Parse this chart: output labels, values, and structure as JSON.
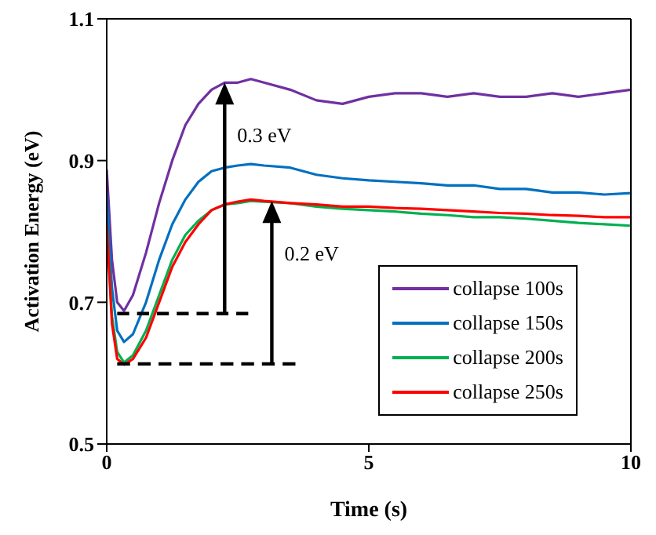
{
  "chart_data": {
    "type": "line",
    "xlabel": "Time (s)",
    "ylabel": "Activation Energy (eV)",
    "x": [
      0,
      0.1,
      0.2,
      0.33,
      0.5,
      0.75,
      1,
      1.25,
      1.5,
      1.75,
      2,
      2.25,
      2.5,
      2.75,
      3,
      3.5,
      4,
      4.5,
      5,
      5.5,
      6,
      6.5,
      7,
      7.5,
      8,
      8.5,
      9,
      9.5,
      10
    ],
    "series": [
      {
        "name": "collapse 100s",
        "color": "#7030a0",
        "values": [
          0.887,
          0.76,
          0.7,
          0.688,
          0.71,
          0.77,
          0.84,
          0.9,
          0.95,
          0.98,
          1.0,
          1.01,
          1.01,
          1.015,
          1.01,
          1.0,
          0.985,
          0.98,
          0.99,
          0.995,
          0.995,
          0.99,
          0.995,
          0.99,
          0.99,
          0.995,
          0.99,
          0.995,
          1.0
        ]
      },
      {
        "name": "collapse 150s",
        "color": "#0070c0",
        "values": [
          0.854,
          0.72,
          0.66,
          0.644,
          0.655,
          0.7,
          0.76,
          0.81,
          0.845,
          0.87,
          0.885,
          0.89,
          0.893,
          0.895,
          0.893,
          0.89,
          0.88,
          0.875,
          0.872,
          0.87,
          0.868,
          0.865,
          0.865,
          0.86,
          0.86,
          0.855,
          0.855,
          0.852,
          0.854
        ]
      },
      {
        "name": "collapse 200s",
        "color": "#00b050",
        "values": [
          0.81,
          0.68,
          0.63,
          0.615,
          0.625,
          0.66,
          0.71,
          0.76,
          0.795,
          0.815,
          0.83,
          0.838,
          0.84,
          0.843,
          0.842,
          0.84,
          0.835,
          0.832,
          0.83,
          0.828,
          0.825,
          0.823,
          0.82,
          0.82,
          0.818,
          0.815,
          0.812,
          0.81,
          0.808
        ]
      },
      {
        "name": "collapse 250s",
        "color": "#ff0000",
        "values": [
          0.81,
          0.67,
          0.62,
          0.612,
          0.62,
          0.65,
          0.7,
          0.75,
          0.785,
          0.81,
          0.83,
          0.838,
          0.842,
          0.845,
          0.843,
          0.84,
          0.838,
          0.835,
          0.835,
          0.833,
          0.832,
          0.83,
          0.828,
          0.826,
          0.825,
          0.823,
          0.822,
          0.82,
          0.82
        ]
      },
      {
        "type": "line",
        "color": "#000000",
        "line_style": "dashed",
        "marker": "none",
        "x": [
          0.2,
          2.7
        ],
        "values": [
          0.684,
          0.684
        ]
      },
      {
        "type": "line",
        "color": "#000000",
        "line_style": "dashed",
        "marker": "none",
        "x": [
          0.2,
          3.6
        ],
        "values": [
          0.613,
          0.613
        ]
      }
    ],
    "annotations": [
      {
        "text": "0.3 eV",
        "x": 2.25,
        "y": 1.01
      },
      {
        "text": "0.2 eV",
        "x": 3.15,
        "y": 0.843
      }
    ],
    "xlim": [
      0,
      10
    ],
    "xticks": [
      0,
      5,
      10
    ],
    "ylim": [
      0.5,
      1.1
    ],
    "yticks": [
      0.5,
      0.7,
      0.9,
      1.1
    ],
    "grid": false,
    "legend": "bottom right",
    "marker": "none",
    "line_style": "solid"
  }
}
